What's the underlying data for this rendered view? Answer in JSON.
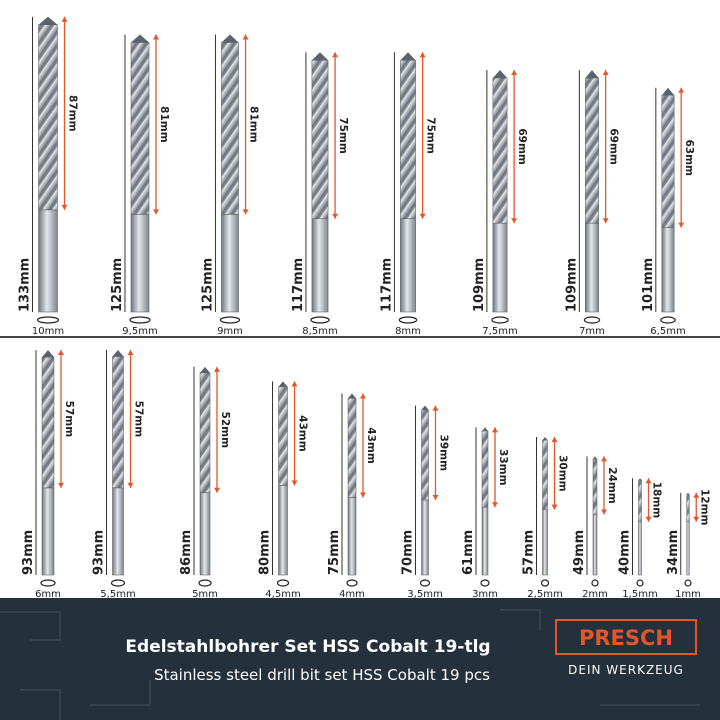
{
  "rows": [
    {
      "drills": [
        {
          "diameter": "10mm",
          "length": "133mm",
          "flute": "87mm"
        },
        {
          "diameter": "9,5mm",
          "length": "125mm",
          "flute": "81mm"
        },
        {
          "diameter": "9mm",
          "length": "125mm",
          "flute": "81mm"
        },
        {
          "diameter": "8,5mm",
          "length": "117mm",
          "flute": "75mm"
        },
        {
          "diameter": "8mm",
          "length": "117mm",
          "flute": "75mm"
        },
        {
          "diameter": "7,5mm",
          "length": "109mm",
          "flute": "69mm"
        },
        {
          "diameter": "7mm",
          "length": "109mm",
          "flute": "69mm"
        },
        {
          "diameter": "6,5mm",
          "length": "101mm",
          "flute": "63mm"
        }
      ]
    },
    {
      "drills": [
        {
          "diameter": "6mm",
          "length": "93mm",
          "flute": "57mm"
        },
        {
          "diameter": "5,5mm",
          "length": "93mm",
          "flute": "57mm"
        },
        {
          "diameter": "5mm",
          "length": "86mm",
          "flute": "52mm"
        },
        {
          "diameter": "4,5mm",
          "length": "80mm",
          "flute": "43mm"
        },
        {
          "diameter": "4mm",
          "length": "75mm",
          "flute": "43mm"
        },
        {
          "diameter": "3,5mm",
          "length": "70mm",
          "flute": "39mm"
        },
        {
          "diameter": "3mm",
          "length": "61mm",
          "flute": "33mm"
        },
        {
          "diameter": "2,5mm",
          "length": "57mm",
          "flute": "30mm"
        },
        {
          "diameter": "2mm",
          "length": "49mm",
          "flute": "24mm"
        },
        {
          "diameter": "1,5mm",
          "length": "40mm",
          "flute": "18mm"
        },
        {
          "diameter": "1mm",
          "length": "34mm",
          "flute": "12mm"
        }
      ]
    }
  ],
  "banner": {
    "title": "Edelstahlbohrer Set HSS Cobalt 19-tlg",
    "subtitle": "Stainless steel drill bit set HSS Cobalt 19 pcs",
    "brand": "PRESCH",
    "tagline": "DEIN WERKZEUG"
  }
}
